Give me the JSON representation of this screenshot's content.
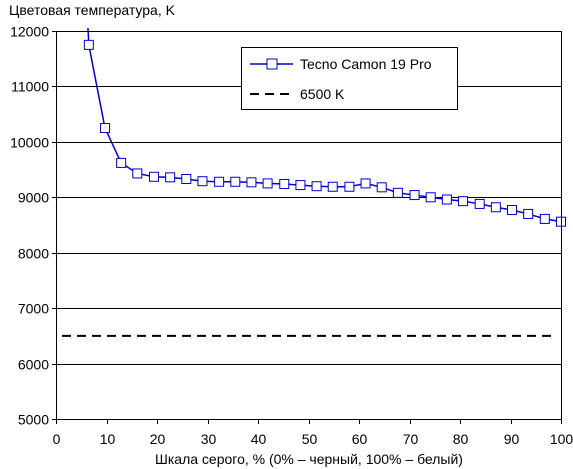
{
  "chart_data": {
    "type": "line",
    "title": "",
    "ylabel": "Цветовая температура, K",
    "xlabel": "Шкала серого, % (0% – черный, 100% – белый)",
    "xlim": [
      0,
      100
    ],
    "ylim": [
      5000,
      12000
    ],
    "xticks": [
      0,
      10,
      20,
      30,
      40,
      50,
      60,
      70,
      80,
      90,
      100
    ],
    "yticks": [
      5000,
      6000,
      7000,
      8000,
      9000,
      10000,
      11000,
      12000
    ],
    "grid": "horizontal",
    "legend_position": "top-right",
    "series": [
      {
        "name": "Tecno Camon 19 Pro",
        "color": "#0000cc",
        "marker": "square",
        "line_start": [
          6.3,
          12100
        ],
        "x": [
          6.5,
          9.7,
          12.9,
          16.1,
          19.4,
          22.6,
          25.8,
          29.0,
          32.3,
          35.5,
          38.7,
          41.9,
          45.2,
          48.4,
          51.6,
          54.8,
          58.1,
          61.3,
          64.5,
          67.7,
          71.0,
          74.2,
          77.4,
          80.6,
          83.9,
          87.1,
          90.3,
          93.5,
          96.8,
          100
        ],
        "y": [
          11750,
          10250,
          9620,
          9430,
          9370,
          9360,
          9330,
          9290,
          9280,
          9280,
          9270,
          9250,
          9240,
          9220,
          9200,
          9190,
          9190,
          9250,
          9180,
          9080,
          9040,
          9000,
          8960,
          8930,
          8880,
          8820,
          8770,
          8700,
          8610,
          8560
        ]
      },
      {
        "name": "6500 K",
        "color": "#000000",
        "style": "dashed",
        "x": [
          0,
          100
        ],
        "y": [
          6500,
          6500
        ]
      }
    ]
  }
}
